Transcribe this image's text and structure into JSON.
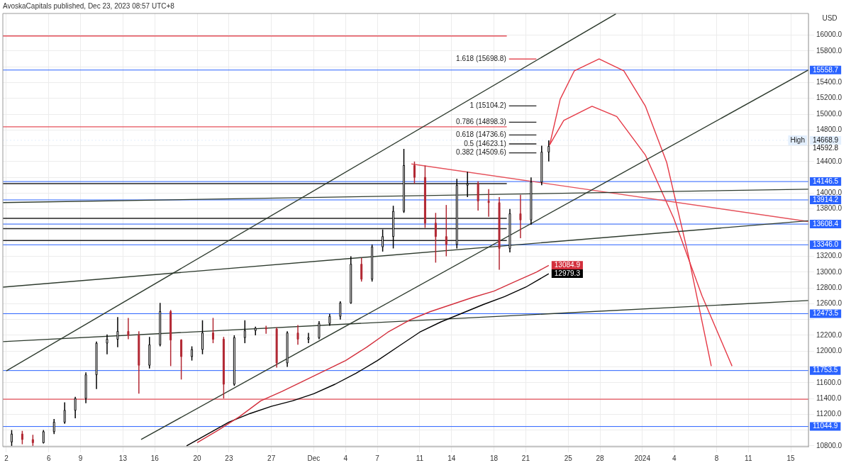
{
  "chart_data": {
    "type": "candlestick",
    "title": "AvoskaCapitals published, Dec 23, 2023 08:57 UTC+8",
    "ylabel": "USD",
    "x": [
      "2023-11-02T12:00",
      "2023-11-03T12:00",
      "2023-11-04T12:00",
      "2023-11-05T12:00",
      "2023-11-06T12:00",
      "2023-11-07T12:00",
      "2023-11-08T12:00",
      "2023-11-09T12:00",
      "2023-11-10T12:00",
      "2023-11-11T12:00",
      "2023-11-12T12:00",
      "2023-11-13T12:00",
      "2023-11-14T12:00",
      "2023-11-15T12:00",
      "2023-11-16T12:00",
      "2023-11-17T12:00",
      "2023-11-18T12:00",
      "2023-11-19T12:00",
      "2023-11-20T12:00",
      "2023-11-21T12:00",
      "2023-11-22T12:00",
      "2023-11-23T12:00",
      "2023-11-24T12:00",
      "2023-11-25T12:00",
      "2023-11-26T12:00",
      "2023-11-27T12:00",
      "2023-11-28T12:00",
      "2023-11-29T12:00",
      "2023-11-30T12:00",
      "2023-12-01T12:00",
      "2023-12-02T12:00",
      "2023-12-03T12:00",
      "2023-12-04T12:00",
      "2023-12-05T12:00",
      "2023-12-06T12:00",
      "2023-12-07T12:00",
      "2023-12-08T12:00",
      "2023-12-09T12:00",
      "2023-12-10T12:00",
      "2023-12-11T12:00",
      "2023-12-12T12:00",
      "2023-12-13T12:00",
      "2023-12-14T12:00",
      "2023-12-15T12:00",
      "2023-12-16T12:00",
      "2023-12-17T12:00",
      "2023-12-18T12:00",
      "2023-12-19T12:00",
      "2023-12-20T12:00",
      "2023-12-21T12:00",
      "2023-12-22T12:00",
      "2023-12-23T04:00"
    ],
    "ohlc": [
      [
        10850,
        11000,
        10800,
        10950
      ],
      [
        10950,
        10990,
        10820,
        10880
      ],
      [
        10880,
        10940,
        10800,
        10840
      ],
      [
        10840,
        11000,
        10830,
        10980
      ],
      [
        10980,
        11140,
        10950,
        11100
      ],
      [
        11100,
        11350,
        11080,
        11250
      ],
      [
        11250,
        11420,
        11150,
        11400
      ],
      [
        11400,
        11730,
        11340,
        11700
      ],
      [
        11700,
        12120,
        11520,
        12100
      ],
      [
        12100,
        12210,
        11960,
        12150
      ],
      [
        12150,
        12430,
        12050,
        12250
      ],
      [
        12250,
        12420,
        12150,
        12200
      ],
      [
        12200,
        12250,
        11460,
        11820
      ],
      [
        11820,
        12180,
        11780,
        12080
      ],
      [
        12080,
        12610,
        12060,
        12500
      ],
      [
        12500,
        12520,
        11810,
        12140
      ],
      [
        12140,
        12150,
        11640,
        11930
      ],
      [
        11930,
        12060,
        11880,
        12020
      ],
      [
        12020,
        12390,
        11960,
        12230
      ],
      [
        12230,
        12420,
        12100,
        12150
      ],
      [
        12150,
        12180,
        11400,
        11580
      ],
      [
        11580,
        12200,
        11560,
        12170
      ],
      [
        12170,
        12390,
        12100,
        12260
      ],
      [
        12260,
        12310,
        12200,
        12290
      ],
      [
        12290,
        12320,
        12220,
        12280
      ],
      [
        12280,
        12300,
        11790,
        11850
      ],
      [
        11850,
        12250,
        11800,
        12230
      ],
      [
        12230,
        12330,
        12080,
        12150
      ],
      [
        12150,
        12230,
        12100,
        12170
      ],
      [
        12170,
        12380,
        12150,
        12350
      ],
      [
        12350,
        12470,
        12320,
        12440
      ],
      [
        12440,
        12630,
        12400,
        12610
      ],
      [
        12610,
        13200,
        12600,
        13100
      ],
      [
        13100,
        13180,
        12880,
        12910
      ],
      [
        12910,
        13350,
        12880,
        13320
      ],
      [
        13320,
        13540,
        13260,
        13450
      ],
      [
        13450,
        13840,
        13300,
        13770
      ],
      [
        13770,
        14560,
        13750,
        14350
      ],
      [
        14350,
        14400,
        14120,
        14200
      ],
      [
        14200,
        14350,
        13560,
        13620
      ],
      [
        13620,
        13750,
        13120,
        13450
      ],
      [
        13450,
        13850,
        13200,
        13350
      ],
      [
        13350,
        14180,
        13300,
        14100
      ],
      [
        14100,
        14270,
        13950,
        14120
      ],
      [
        14120,
        14150,
        13780,
        13900
      ],
      [
        13900,
        14050,
        13700,
        13880
      ],
      [
        13880,
        13950,
        13030,
        13300
      ],
      [
        13300,
        13800,
        13250,
        13740
      ],
      [
        13740,
        13980,
        13430,
        13660
      ],
      [
        13660,
        14200,
        13600,
        14140
      ],
      [
        14140,
        14600,
        14100,
        14520
      ],
      [
        14520,
        14668.9,
        14400,
        14592.8
      ]
    ],
    "value_labels": [
      null,
      null,
      null,
      null,
      null,
      null,
      null,
      null,
      null,
      null,
      null,
      null,
      null,
      null,
      null,
      null,
      null,
      null,
      null,
      null,
      null,
      null,
      null,
      null,
      null,
      null,
      null,
      null,
      null,
      null,
      null,
      null,
      null,
      null,
      null,
      null,
      null,
      null,
      null,
      null,
      null,
      null,
      null,
      null,
      null,
      null,
      null,
      null,
      null,
      null,
      null,
      "14592.8"
    ],
    "series": [
      {
        "type": "line",
        "color": "#d32f3c",
        "x": [
          "2023-11-20",
          "2023-11-22",
          "2023-11-24",
          "2023-11-26",
          "2023-11-28",
          "2023-11-30",
          "2023-12-02",
          "2023-12-04",
          "2023-12-06",
          "2023-12-08",
          "2023-12-10",
          "2023-12-12",
          "2023-12-14",
          "2023-12-16",
          "2023-12-18",
          "2023-12-20",
          "2023-12-22",
          "2023-12-23T04:00"
        ],
        "values": [
          10840,
          11000,
          11170,
          11370,
          11490,
          11620,
          11750,
          11880,
          12050,
          12240,
          12390,
          12500,
          12590,
          12680,
          12760,
          12880,
          13000,
          13084.9
        ],
        "value_labels": [
          null,
          null,
          null,
          null,
          null,
          null,
          null,
          null,
          null,
          null,
          null,
          null,
          null,
          null,
          null,
          null,
          null,
          "13084.9"
        ]
      },
      {
        "type": "line",
        "color": "#000000",
        "x": [
          "2023-11-19",
          "2023-11-21",
          "2023-11-23",
          "2023-11-25",
          "2023-11-27",
          "2023-11-29",
          "2023-12-01",
          "2023-12-03",
          "2023-12-05",
          "2023-12-07",
          "2023-12-09",
          "2023-12-11",
          "2023-12-13",
          "2023-12-15",
          "2023-12-17",
          "2023-12-19",
          "2023-12-21",
          "2023-12-23T04:00"
        ],
        "values": [
          10800,
          10950,
          11100,
          11210,
          11300,
          11370,
          11460,
          11580,
          11720,
          11880,
          12060,
          12240,
          12370,
          12480,
          12590,
          12690,
          12810,
          12979.3
        ],
        "value_labels": [
          null,
          null,
          null,
          null,
          null,
          null,
          null,
          null,
          null,
          null,
          null,
          null,
          null,
          null,
          null,
          null,
          null,
          "12979.3"
        ]
      },
      {
        "type": "line",
        "color": "#2e3b2e",
        "x": [
          "2023-11-02",
          "2023-12-29T12:00"
        ],
        "values": [
          11750,
          16270
        ]
      },
      {
        "type": "line",
        "color": "#2e3b2e",
        "x": [
          "2023-11-14T17:00",
          "2024-01-16T16:00"
        ],
        "values": [
          10880,
          15560
        ]
      },
      {
        "type": "line",
        "color": "#2e3b2e",
        "x": [
          "2023-11-01T16:00",
          "2024-01-16T16:00"
        ],
        "values": [
          12810,
          13650
        ]
      },
      {
        "type": "line",
        "color": "#2e3b2e",
        "x": [
          "2023-11-01T16:00",
          "2024-01-16T16:00"
        ],
        "values": [
          12120,
          12640
        ]
      },
      {
        "type": "line",
        "color": "#2e3b2e",
        "x": [
          "2023-11-01T16:00",
          "2024-01-16T16:00"
        ],
        "values": [
          13880,
          14050
        ]
      },
      {
        "type": "line",
        "color": "#e5505a",
        "x": [
          "2023-12-10T05:00",
          "2024-01-16T16:00"
        ],
        "values": [
          14370,
          13640
        ]
      },
      {
        "type": "line",
        "color": "#e53946",
        "x": [
          "2023-12-23T06:00",
          "2023-12-24T06:00",
          "2023-12-25T14:00",
          "2023-12-27T22:00",
          "2023-12-30T06:00",
          "2024-01-01T07:00",
          "2024-01-03T07:00",
          "2024-01-05T07:00",
          "2024-01-07T12:00"
        ],
        "values": [
          14610,
          15190,
          15550,
          15700,
          15550,
          15100,
          14390,
          13240,
          11810
        ]
      },
      {
        "type": "line",
        "color": "#e53946",
        "x": [
          "2023-12-23T06:00",
          "2023-12-24T14:00",
          "2023-12-27T06:00",
          "2023-12-29T14:00",
          "2024-01-01T07:00",
          "2024-01-03T23:00",
          "2024-01-06T15:00",
          "2024-01-09T11:00"
        ],
        "values": [
          14610,
          14920,
          15100,
          14970,
          14480,
          13680,
          12700,
          11810
        ]
      },
      {
        "type": "line",
        "color": "#e5505a",
        "x": [
          "2023-11-01T16:00",
          "2023-12-19T05:00"
        ],
        "values": [
          15990,
          15990
        ]
      },
      {
        "type": "line",
        "color": "#e5505a",
        "x": [
          "2023-11-01T16:00",
          "2023-12-19T05:00"
        ],
        "values": [
          14840,
          14840
        ]
      },
      {
        "type": "line",
        "color": "#e5505a",
        "x": [
          "2023-11-01T16:00",
          "2024-01-16T16:00"
        ],
        "values": [
          11390,
          11390
        ]
      },
      {
        "type": "line",
        "color": "#222222",
        "x": [
          "2023-11-01T16:00",
          "2023-12-19T05:00"
        ],
        "values": [
          14120,
          14120
        ]
      },
      {
        "type": "line",
        "color": "#222222",
        "x": [
          "2023-11-01T16:00",
          "2023-12-19T05:00"
        ],
        "values": [
          13680,
          13680
        ]
      },
      {
        "type": "line",
        "color": "#222222",
        "x": [
          "2023-11-01T16:00",
          "2023-12-19T05:00"
        ],
        "values": [
          13550,
          13550
        ]
      },
      {
        "type": "line",
        "color": "#222222",
        "x": [
          "2023-11-01T16:00",
          "2023-12-19T05:00"
        ],
        "values": [
          13400,
          13400
        ]
      },
      {
        "type": "line",
        "color": "#e5505a",
        "x": [
          "2023-12-19T10:00",
          "2023-12-22T00:00"
        ],
        "values": [
          15698.8,
          15698.8
        ]
      },
      {
        "type": "line",
        "color": "#222222",
        "x": [
          "2023-12-19T10:00",
          "2023-12-22T00:00"
        ],
        "values": [
          15104.2,
          15104.2
        ]
      },
      {
        "type": "line",
        "color": "#222222",
        "x": [
          "2023-12-19T10:00",
          "2023-12-22T00:00"
        ],
        "values": [
          14898.3,
          14898.3
        ]
      },
      {
        "type": "line",
        "color": "#222222",
        "x": [
          "2023-12-19T10:00",
          "2023-12-22T00:00"
        ],
        "values": [
          14736.6,
          14736.6
        ]
      },
      {
        "type": "line",
        "color": "#222222",
        "x": [
          "2023-12-19T10:00",
          "2023-12-22T00:00"
        ],
        "values": [
          14623.1,
          14623.1
        ]
      },
      {
        "type": "line",
        "color": "#222222",
        "x": [
          "2023-12-19T10:00",
          "2023-12-22T00:00"
        ],
        "values": [
          14509.6,
          14509.6
        ]
      }
    ],
    "ref_lines": [
      {
        "axis": "y",
        "value": 15558.7,
        "label": "15558.7",
        "color": "#2962ff"
      },
      {
        "axis": "y",
        "value": 14668.9,
        "label": "14668.9",
        "color": "#e3effd",
        "line_style": "dotted"
      },
      {
        "axis": "y",
        "value": 14146.5,
        "label": "14146.5",
        "color": "#2962ff"
      },
      {
        "axis": "y",
        "value": 13914.2,
        "label": "13914.2",
        "color": "#2962ff"
      },
      {
        "axis": "y",
        "value": 13608.4,
        "label": "13608.4",
        "color": "#2962ff"
      },
      {
        "axis": "y",
        "value": 13346.0,
        "label": "13346.0",
        "color": "#2962ff"
      },
      {
        "axis": "y",
        "value": 12473.5,
        "label": "12473.5",
        "color": "#2962ff"
      },
      {
        "axis": "y",
        "value": 11753.5,
        "label": "11753.5",
        "color": "#2962ff"
      },
      {
        "axis": "y",
        "value": 11044.9,
        "label": "11044.9",
        "color": "#2962ff"
      }
    ],
    "annotations": [
      {
        "text": "1.618 (15698.8)",
        "x": "2023-12-19T10:00",
        "y": 15698.8
      },
      {
        "text": "1 (15104.2)",
        "x": "2023-12-19T10:00",
        "y": 15104.2
      },
      {
        "text": "0.786 (14898.3)",
        "x": "2023-12-19T10:00",
        "y": 14898.3
      },
      {
        "text": "0.618 (14736.6)",
        "x": "2023-12-19T10:00",
        "y": 14736.6
      },
      {
        "text": "0.5 (14623.1)",
        "x": "2023-12-19T10:00",
        "y": 14623.1
      },
      {
        "text": "0.382 (14509.6)",
        "x": "2023-12-19T10:00",
        "y": 14509.6
      },
      {
        "text": "High",
        "x": "2024-01-16T16:00",
        "y": 14668.9
      }
    ],
    "xlim": [
      "2023-11-01T16:00",
      "2024-01-16T16:00"
    ],
    "xticks": [
      {
        "value": "2023-11-02",
        "label": "2"
      },
      {
        "value": "2023-11-06",
        "label": "6"
      },
      {
        "value": "2023-11-09",
        "label": "9"
      },
      {
        "value": "2023-11-13",
        "label": "13"
      },
      {
        "value": "2023-11-16",
        "label": "16"
      },
      {
        "value": "2023-11-20",
        "label": "20"
      },
      {
        "value": "2023-11-23",
        "label": "23"
      },
      {
        "value": "2023-11-27",
        "label": "27"
      },
      {
        "value": "2023-12-01",
        "label": "Dec"
      },
      {
        "value": "2023-12-04",
        "label": "4"
      },
      {
        "value": "2023-12-07",
        "label": "7"
      },
      {
        "value": "2023-12-11",
        "label": "11"
      },
      {
        "value": "2023-12-14",
        "label": "14"
      },
      {
        "value": "2023-12-18",
        "label": "18"
      },
      {
        "value": "2023-12-21",
        "label": "21"
      },
      {
        "value": "2023-12-25",
        "label": "25"
      },
      {
        "value": "2023-12-28",
        "label": "28"
      },
      {
        "value": "2024-01-01",
        "label": "2024"
      },
      {
        "value": "2024-01-04",
        "label": "4"
      },
      {
        "value": "2024-01-08",
        "label": "8"
      },
      {
        "value": "2024-01-11",
        "label": "11"
      },
      {
        "value": "2024-01-15",
        "label": "15"
      }
    ],
    "ylim": [
      10790,
      16275
    ],
    "yticks": [
      {
        "value": 10800,
        "label": "10800.0"
      },
      {
        "value": 11000,
        "label": null
      },
      {
        "value": 11200,
        "label": "11200.0"
      },
      {
        "value": 11400,
        "label": "11400.0"
      },
      {
        "value": 11600,
        "label": "11600.0"
      },
      {
        "value": 11800,
        "label": null
      },
      {
        "value": 12000,
        "label": "12000.0"
      },
      {
        "value": 12200,
        "label": "12200.0"
      },
      {
        "value": 12400,
        "label": null
      },
      {
        "value": 12600,
        "label": "12600.0"
      },
      {
        "value": 12800,
        "label": "12800.0"
      },
      {
        "value": 13000,
        "label": "13000.0"
      },
      {
        "value": 13200,
        "label": "13200.0"
      },
      {
        "value": 13400,
        "label": null
      },
      {
        "value": 13600,
        "label": null
      },
      {
        "value": 13800,
        "label": "13800.0"
      },
      {
        "value": 14000,
        "label": "14000.0"
      },
      {
        "value": 14200,
        "label": null
      },
      {
        "value": 14400,
        "label": "14400.0"
      },
      {
        "value": 14600,
        "label": null
      },
      {
        "value": 14800,
        "label": "14800.0"
      },
      {
        "value": 15000,
        "label": "15000.0"
      },
      {
        "value": 15200,
        "label": "15200.0"
      },
      {
        "value": 15400,
        "label": "15400.0"
      },
      {
        "value": 15600,
        "label": null
      },
      {
        "value": 15800,
        "label": "15800.0"
      },
      {
        "value": 16000,
        "label": "16000.0"
      }
    ],
    "grid": true,
    "legend": false
  }
}
